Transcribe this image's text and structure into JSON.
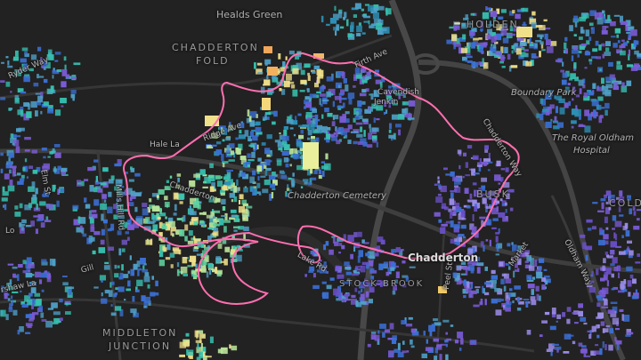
{
  "map": {
    "colors": {
      "background": "#222222",
      "road": "#3a3a3a",
      "major_road": "#4a4a4a",
      "boundary": "#ff6fb0"
    },
    "palette": [
      "#3b6fd4",
      "#4fa0c8",
      "#36c1b0",
      "#2d8fb5",
      "#7a5bd6",
      "#9b8ce8",
      "#b9e39a",
      "#f0e08a",
      "#5fd3a0",
      "#6a4fc9"
    ],
    "labels": {
      "healds_green": "Healds Green",
      "chadderton_fold_1": "CHADDERTON",
      "chadderton_fold_2": "FOLD",
      "holden_fold": "HOLDEN",
      "boundary_park": "Boundary Park",
      "royal_oldham_1": "The Royal Oldham",
      "royal_oldham_2": "Hospital",
      "chadderton_cemetery": "Chadderton Cemetery",
      "busk": "BUSK",
      "chadderton": "Chadderton",
      "stock_brook": "STOCK BROOK",
      "middleton_1": "MIDDLETON",
      "middleton_2": "JUNCTION",
      "cold": "COLD",
      "chadderton_way": "Chadderton Way",
      "oldham_way": "Oldham Way",
      "mills_hill_rd": "Mills Hill Rd",
      "peel_st": "Peel St",
      "elm_st": "Elm St",
      "hale_ln": "Hale La",
      "ridge_ave": "Ridge Ave",
      "chadderton_small": "Chadderton",
      "firth_ave": "Firth Ave",
      "lake_rd": "Lake Rd",
      "ryder_way": "Ryder Way",
      "shaw_ln": "rshaw La",
      "market_st": "Market",
      "jenkin_st": "Jenkin",
      "cavendish": "Cavendish",
      "gill_st": "Gill",
      "lo": "Lo"
    }
  }
}
